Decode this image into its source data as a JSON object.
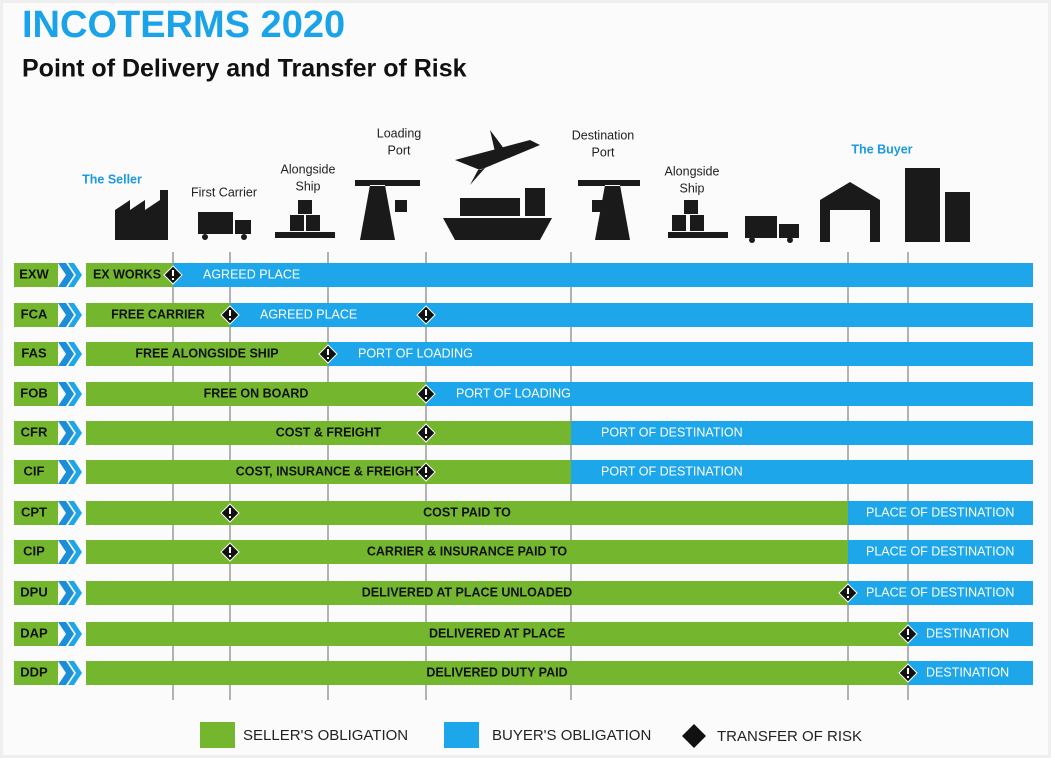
{
  "header": {
    "title": "INCOTERMS 2020",
    "subtitle": "Point of Delivery and Transfer of Risk"
  },
  "stages": [
    {
      "lines": [
        "The Seller"
      ]
    },
    {
      "lines": [
        "First Carrier"
      ]
    },
    {
      "lines": [
        "Alongside",
        "Ship"
      ]
    },
    {
      "lines": [
        "Loading",
        "Port"
      ]
    },
    {
      "lines": [
        "Destination",
        "Port"
      ]
    },
    {
      "lines": [
        "Alongside",
        "Ship"
      ]
    },
    {
      "lines": [
        "The Buyer"
      ]
    }
  ],
  "rows": [
    {
      "code": "EXW",
      "seller": "EX WORKS",
      "buyer": "AGREED PLACE"
    },
    {
      "code": "FCA",
      "seller": "FREE CARRIER",
      "buyer": "AGREED PLACE"
    },
    {
      "code": "FAS",
      "seller": "FREE ALONGSIDE SHIP",
      "buyer": "PORT OF LOADING"
    },
    {
      "code": "FOB",
      "seller": "FREE  ON BOARD",
      "buyer": "PORT OF LOADING"
    },
    {
      "code": "CFR",
      "seller": "COST & FREIGHT",
      "buyer": "PORT OF DESTINATION"
    },
    {
      "code": "CIF",
      "seller": "COST, INSURANCE & FREIGHT",
      "buyer": "PORT OF DESTINATION"
    },
    {
      "code": "CPT",
      "seller": "COST PAID TO",
      "buyer": "PLACE OF DESTINATION"
    },
    {
      "code": "CIP",
      "seller": "CARRIER & INSURANCE PAID TO",
      "buyer": "PLACE OF DESTINATION"
    },
    {
      "code": "DPU",
      "seller": "DELIVERED AT PLACE UNLOADED",
      "buyer": "PLACE OF DESTINATION"
    },
    {
      "code": "DAP",
      "seller": "DELIVERED AT PLACE",
      "buyer": "DESTINATION"
    },
    {
      "code": "DDP",
      "seller": "DELIVERED DUTY PAID",
      "buyer": "DESTINATION"
    }
  ],
  "legend": {
    "seller": "SELLER'S OBLIGATION",
    "buyer": "BUYER'S OBLIGATION",
    "risk": "TRANSFER OF RISK"
  }
}
